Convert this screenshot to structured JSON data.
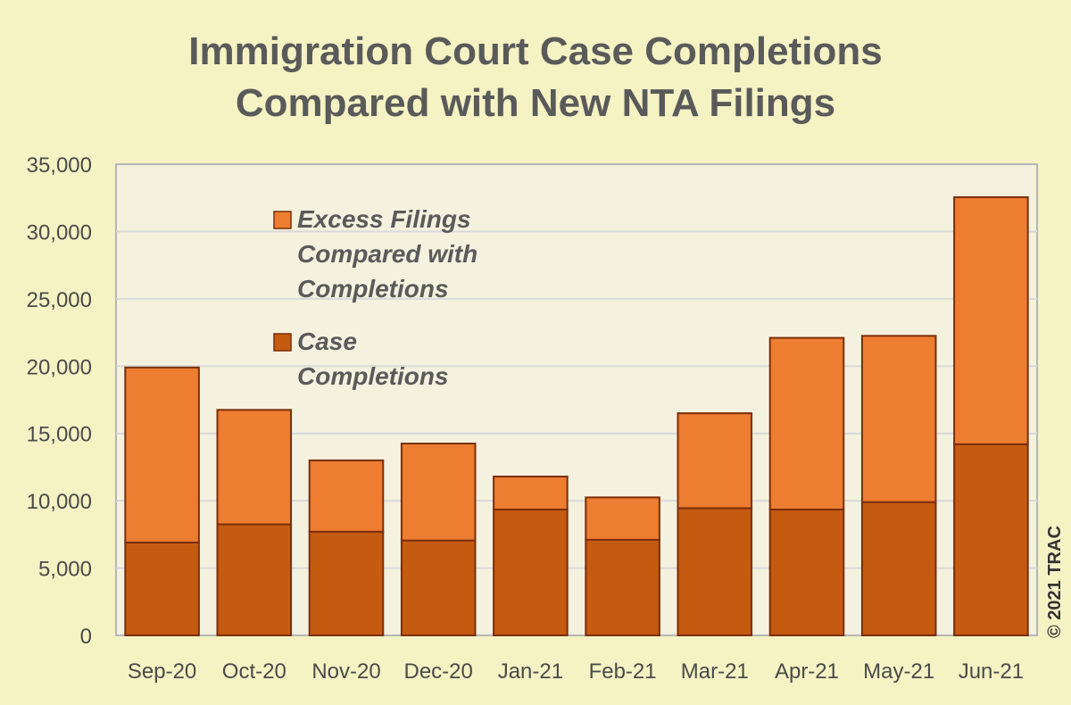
{
  "chart_data": {
    "type": "bar",
    "stacked": true,
    "title": [
      "Immigration Court Case Completions",
      "Compared with New NTA Filings"
    ],
    "categories": [
      "Sep-20",
      "Oct-20",
      "Nov-20",
      "Dec-20",
      "Jan-21",
      "Feb-21",
      "Mar-21",
      "Apr-21",
      "May-21",
      "Jun-21"
    ],
    "series": [
      {
        "name": "Case Completions",
        "color": "#c55a11",
        "values": [
          6900,
          8250,
          7700,
          7050,
          9350,
          7100,
          9450,
          9350,
          9900,
          14200
        ]
      },
      {
        "name": "Excess Filings Compared with Completions",
        "color": "#ed7d31",
        "values": [
          13000,
          8500,
          5300,
          7200,
          2450,
          3150,
          7050,
          12750,
          12350,
          18350
        ]
      }
    ],
    "legend_lines": [
      [
        "Excess Filings",
        "Compared with",
        "Completions"
      ],
      [
        "Case",
        "Completions"
      ]
    ],
    "ylim": [
      0,
      35000
    ],
    "yticks": [
      "0",
      "5,000",
      "10,000",
      "15,000",
      "20,000",
      "25,000",
      "30,000",
      "35,000"
    ],
    "grid": true,
    "legend_position": "upper-left inside plot",
    "copyright": "© 2021 TRAC",
    "colors": {
      "background": "#f5f3c4",
      "plot_background": "#f4f1de",
      "grid": "#d9d9d9",
      "bar_edge": "#7a2e0b"
    }
  }
}
